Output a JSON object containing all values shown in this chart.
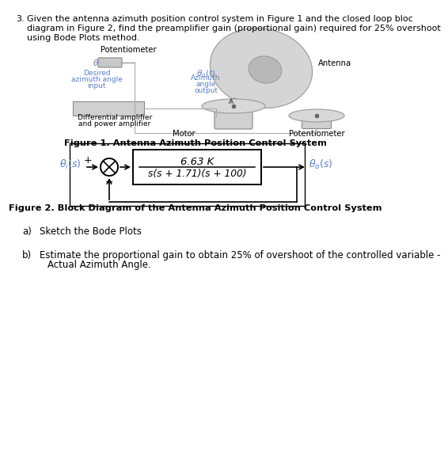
{
  "question_number": "3.",
  "question_lines": [
    "Given the antenna azimuth position control system in Figure 1 and the closed loop bloc",
    "diagram in Figure 2, find the preamplifier gain (proportional gain) required for 25% overshoot",
    "using Bode Plots method."
  ],
  "figure1_caption": "Figure 1. Antenna Azimuth Position Control System",
  "figure2_caption": "Figure 2. Block Diagram of the Antenna Azimuth Position Control System",
  "tf_numerator": "6.63 K",
  "tf_denominator": "s(s + 1.71)(s + 100)",
  "part_a_label": "a)",
  "part_a_text": "Sketch the Bode Plots",
  "part_b_label": "b)",
  "part_b_line1": "Estimate the proportional gain to obtain 25% of overshoot of the controlled variable -",
  "part_b_line2": "Actual Azimuth Angle.",
  "bg_color": "#ffffff",
  "text_color": "#000000",
  "blue_color": "#5b7fc4",
  "gray_dark": "#888888",
  "gray_light": "#cccccc",
  "gray_mid": "#aaaaaa",
  "body_fontsize": 8.0,
  "caption_fontsize": 8.2,
  "label_fontsize": 7.2,
  "diagram_fontsize": 8.5
}
